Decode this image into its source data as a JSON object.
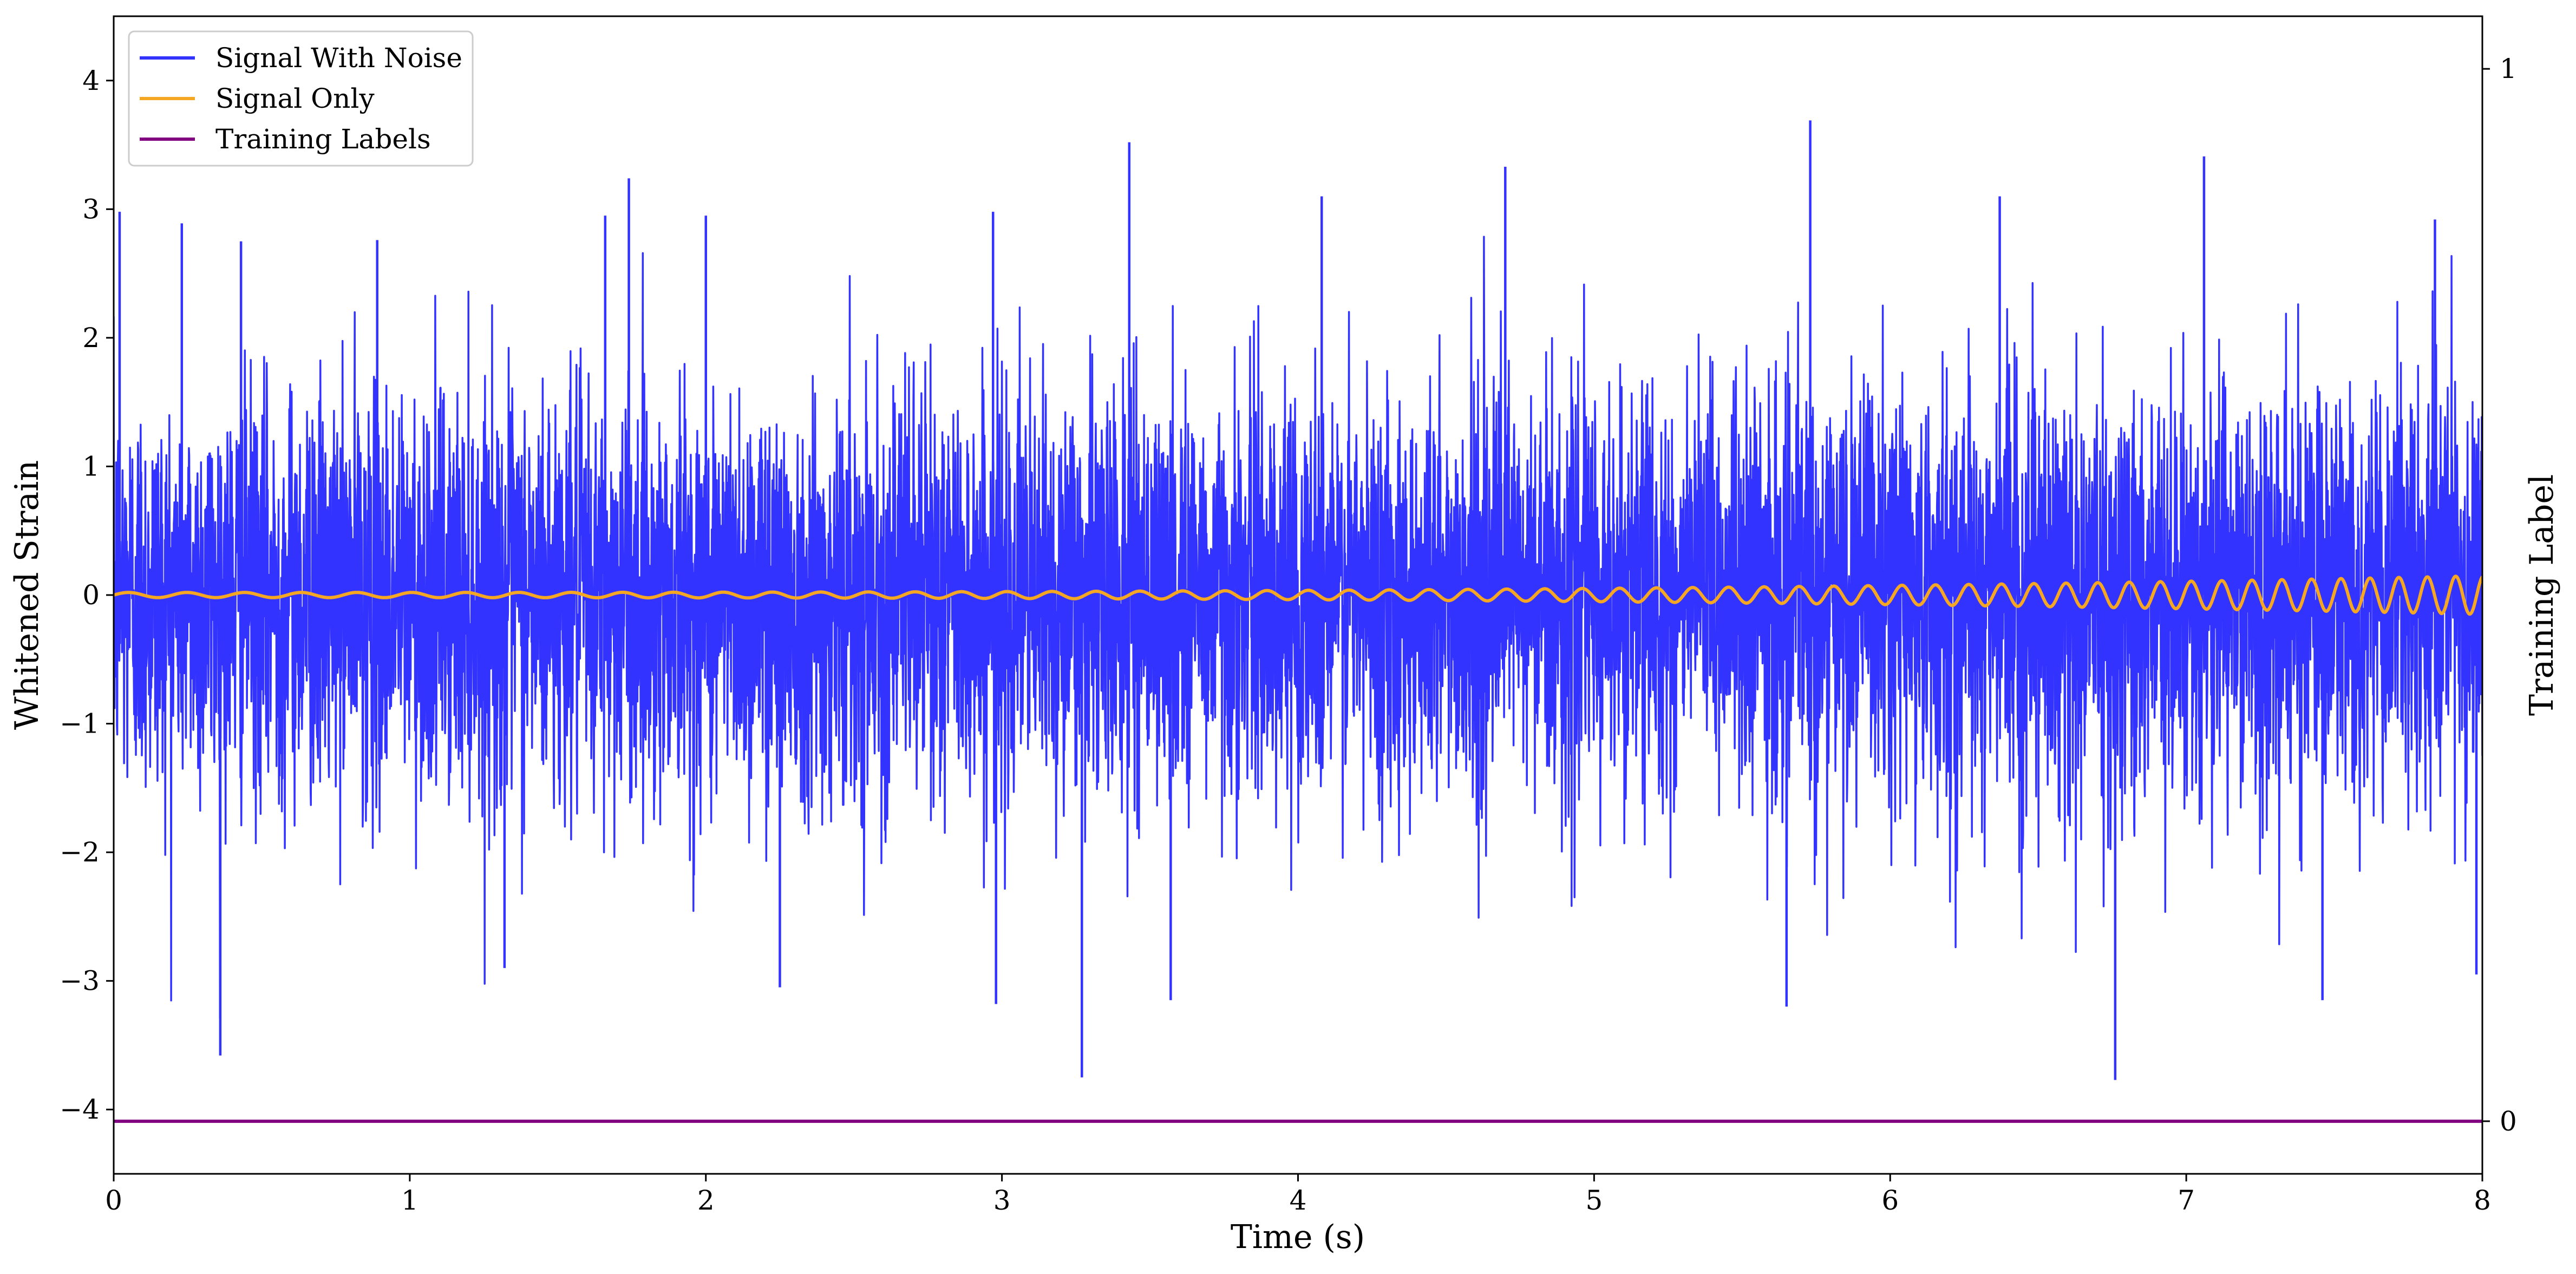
{
  "chart_data": {
    "type": "line",
    "xlabel": "Time (s)",
    "ylabel": "Whitened Strain",
    "ylabel_right": "Training Label",
    "xlim": [
      0,
      8
    ],
    "ylim": [
      -4.5,
      4.5
    ],
    "ylim_right": [
      -0.05,
      1.05
    ],
    "x_ticks": [
      0,
      1,
      2,
      3,
      4,
      5,
      6,
      7,
      8
    ],
    "y_ticks": [
      -4,
      -3,
      -2,
      -1,
      0,
      1,
      2,
      3,
      4
    ],
    "y_ticks_right": [
      0,
      1
    ],
    "x_tick_labels": [
      "0",
      "1",
      "2",
      "3",
      "4",
      "5",
      "6",
      "7",
      "8"
    ],
    "y_tick_labels": [
      "−4",
      "−3",
      "−2",
      "−1",
      "0",
      "1",
      "2",
      "3",
      "4"
    ],
    "y_tick_labels_right": [
      "0",
      "1"
    ],
    "grid": false,
    "legend_position": "top-left",
    "series": [
      {
        "name": "Signal With Noise",
        "color": "#3333ff",
        "description": "whitened noise plus chirp, approx. unit variance, spikes to about ±3.7",
        "notable_peaks": [
          {
            "x": 0.02,
            "y": 2.98
          },
          {
            "x": 0.23,
            "y": 2.89
          },
          {
            "x": 0.43,
            "y": 2.75
          },
          {
            "x": 0.89,
            "y": 2.76
          },
          {
            "x": 1.66,
            "y": 2.95
          },
          {
            "x": 1.74,
            "y": 3.24
          },
          {
            "x": 2.0,
            "y": 2.95
          },
          {
            "x": 2.97,
            "y": 2.98
          },
          {
            "x": 3.43,
            "y": 3.52
          },
          {
            "x": 4.08,
            "y": 3.1
          },
          {
            "x": 4.7,
            "y": 3.33
          },
          {
            "x": 5.73,
            "y": 3.69
          },
          {
            "x": 6.37,
            "y": 3.1
          },
          {
            "x": 7.06,
            "y": 3.41
          },
          {
            "x": 7.84,
            "y": 2.92
          }
        ],
        "notable_troughs": [
          {
            "x": 0.36,
            "y": -3.58
          },
          {
            "x": 1.32,
            "y": -2.9
          },
          {
            "x": 2.25,
            "y": -3.05
          },
          {
            "x": 2.98,
            "y": -3.18
          },
          {
            "x": 3.27,
            "y": -3.75
          },
          {
            "x": 3.57,
            "y": -3.15
          },
          {
            "x": 5.65,
            "y": -3.2
          },
          {
            "x": 6.76,
            "y": -3.77
          },
          {
            "x": 7.46,
            "y": -3.15
          },
          {
            "x": 7.98,
            "y": -2.95
          }
        ]
      },
      {
        "name": "Signal Only",
        "color": "#f5a623",
        "description": "chirp oscillation around 0, amplitude growing from about 0.02 to 0.15, frequency rising toward t = 8 s"
      },
      {
        "name": "Training Labels",
        "color": "#800080",
        "axis": "right",
        "x": [
          0,
          8
        ],
        "y": [
          0,
          0
        ]
      }
    ]
  }
}
